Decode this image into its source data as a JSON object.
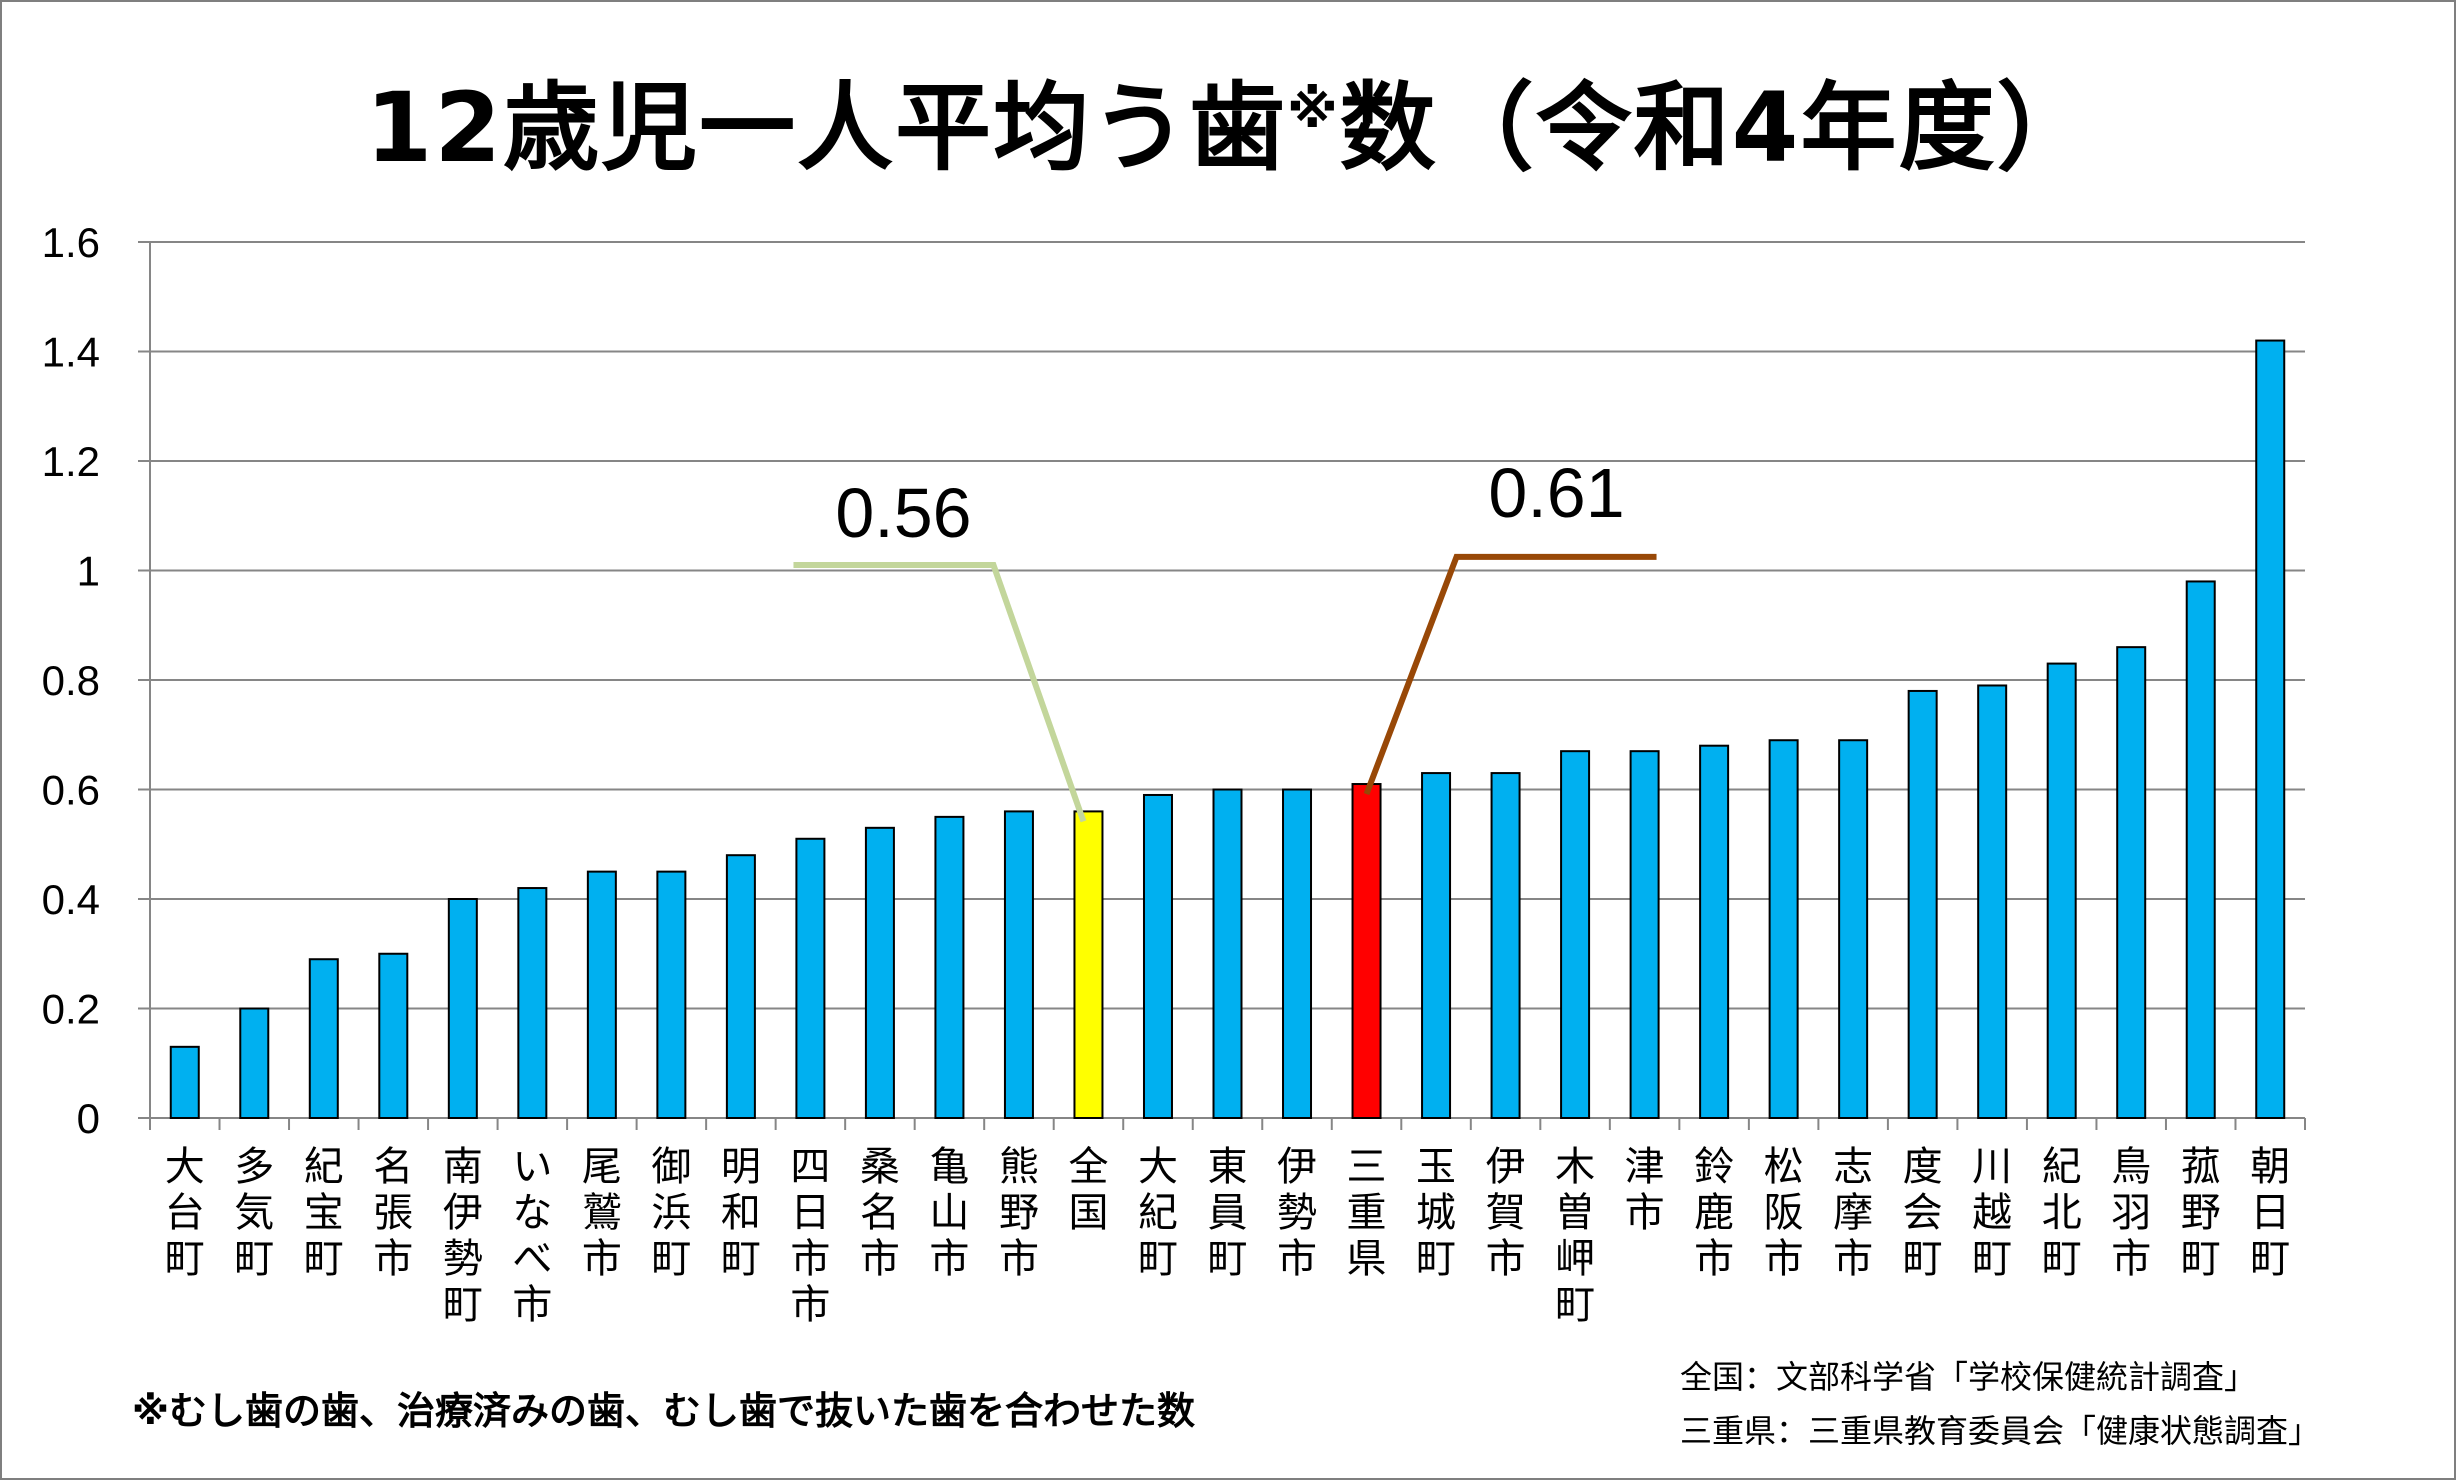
{
  "title": {
    "main_before": "12歳児一人平均う歯",
    "mark": "※",
    "main_after": "数（令和4年度）"
  },
  "footnote": "※むし歯の歯、治療済みの歯、むし歯で抜いた歯を合わせた数",
  "sources": {
    "national": "全国：文部科学省「学校保健統計調査」",
    "prefecture": "三重県：三重県教育委員会「健康状態調査」"
  },
  "colors": {
    "bar": "#00b0f0",
    "national_bar": "#ffff00",
    "prefecture_bar": "#ff0000",
    "national_callout": "#c3d69b",
    "prefecture_callout": "#984807",
    "grid": "#868686"
  },
  "chart_data": {
    "type": "bar",
    "title": "12歳児一人平均う歯※数（令和4年度）",
    "xlabel": "",
    "ylabel": "",
    "ylim": [
      0,
      1.6
    ],
    "yticks": [
      "0",
      "0.2",
      "0.4",
      "0.6",
      "0.8",
      "1",
      "1.2",
      "1.4",
      "1.6"
    ],
    "grid": true,
    "categories": [
      "大台町",
      "多気町",
      "紀宝町",
      "名張市",
      "南伊勢町",
      "いなべ市",
      "尾鷲市",
      "御浜町",
      "明和町",
      "四日市市",
      "桑名市",
      "亀山市",
      "熊野市",
      "全国",
      "大紀町",
      "東員町",
      "伊勢市",
      "三重県",
      "玉城町",
      "伊賀市",
      "木曽岬町",
      "津市",
      "鈴鹿市",
      "松阪市",
      "志摩市",
      "度会町",
      "川越町",
      "紀北町",
      "鳥羽市",
      "菰野町",
      "朝日町"
    ],
    "values": [
      0.13,
      0.2,
      0.29,
      0.3,
      0.4,
      0.42,
      0.45,
      0.45,
      0.48,
      0.51,
      0.53,
      0.55,
      0.56,
      0.56,
      0.59,
      0.6,
      0.6,
      0.61,
      0.63,
      0.63,
      0.67,
      0.67,
      0.68,
      0.69,
      0.69,
      0.78,
      0.79,
      0.83,
      0.86,
      0.98,
      1.42
    ],
    "highlights": {
      "全国": "national",
      "三重県": "prefecture"
    },
    "annotations": [
      {
        "text": "0.56",
        "category": "全国"
      },
      {
        "text": "0.61",
        "category": "三重県"
      }
    ]
  }
}
